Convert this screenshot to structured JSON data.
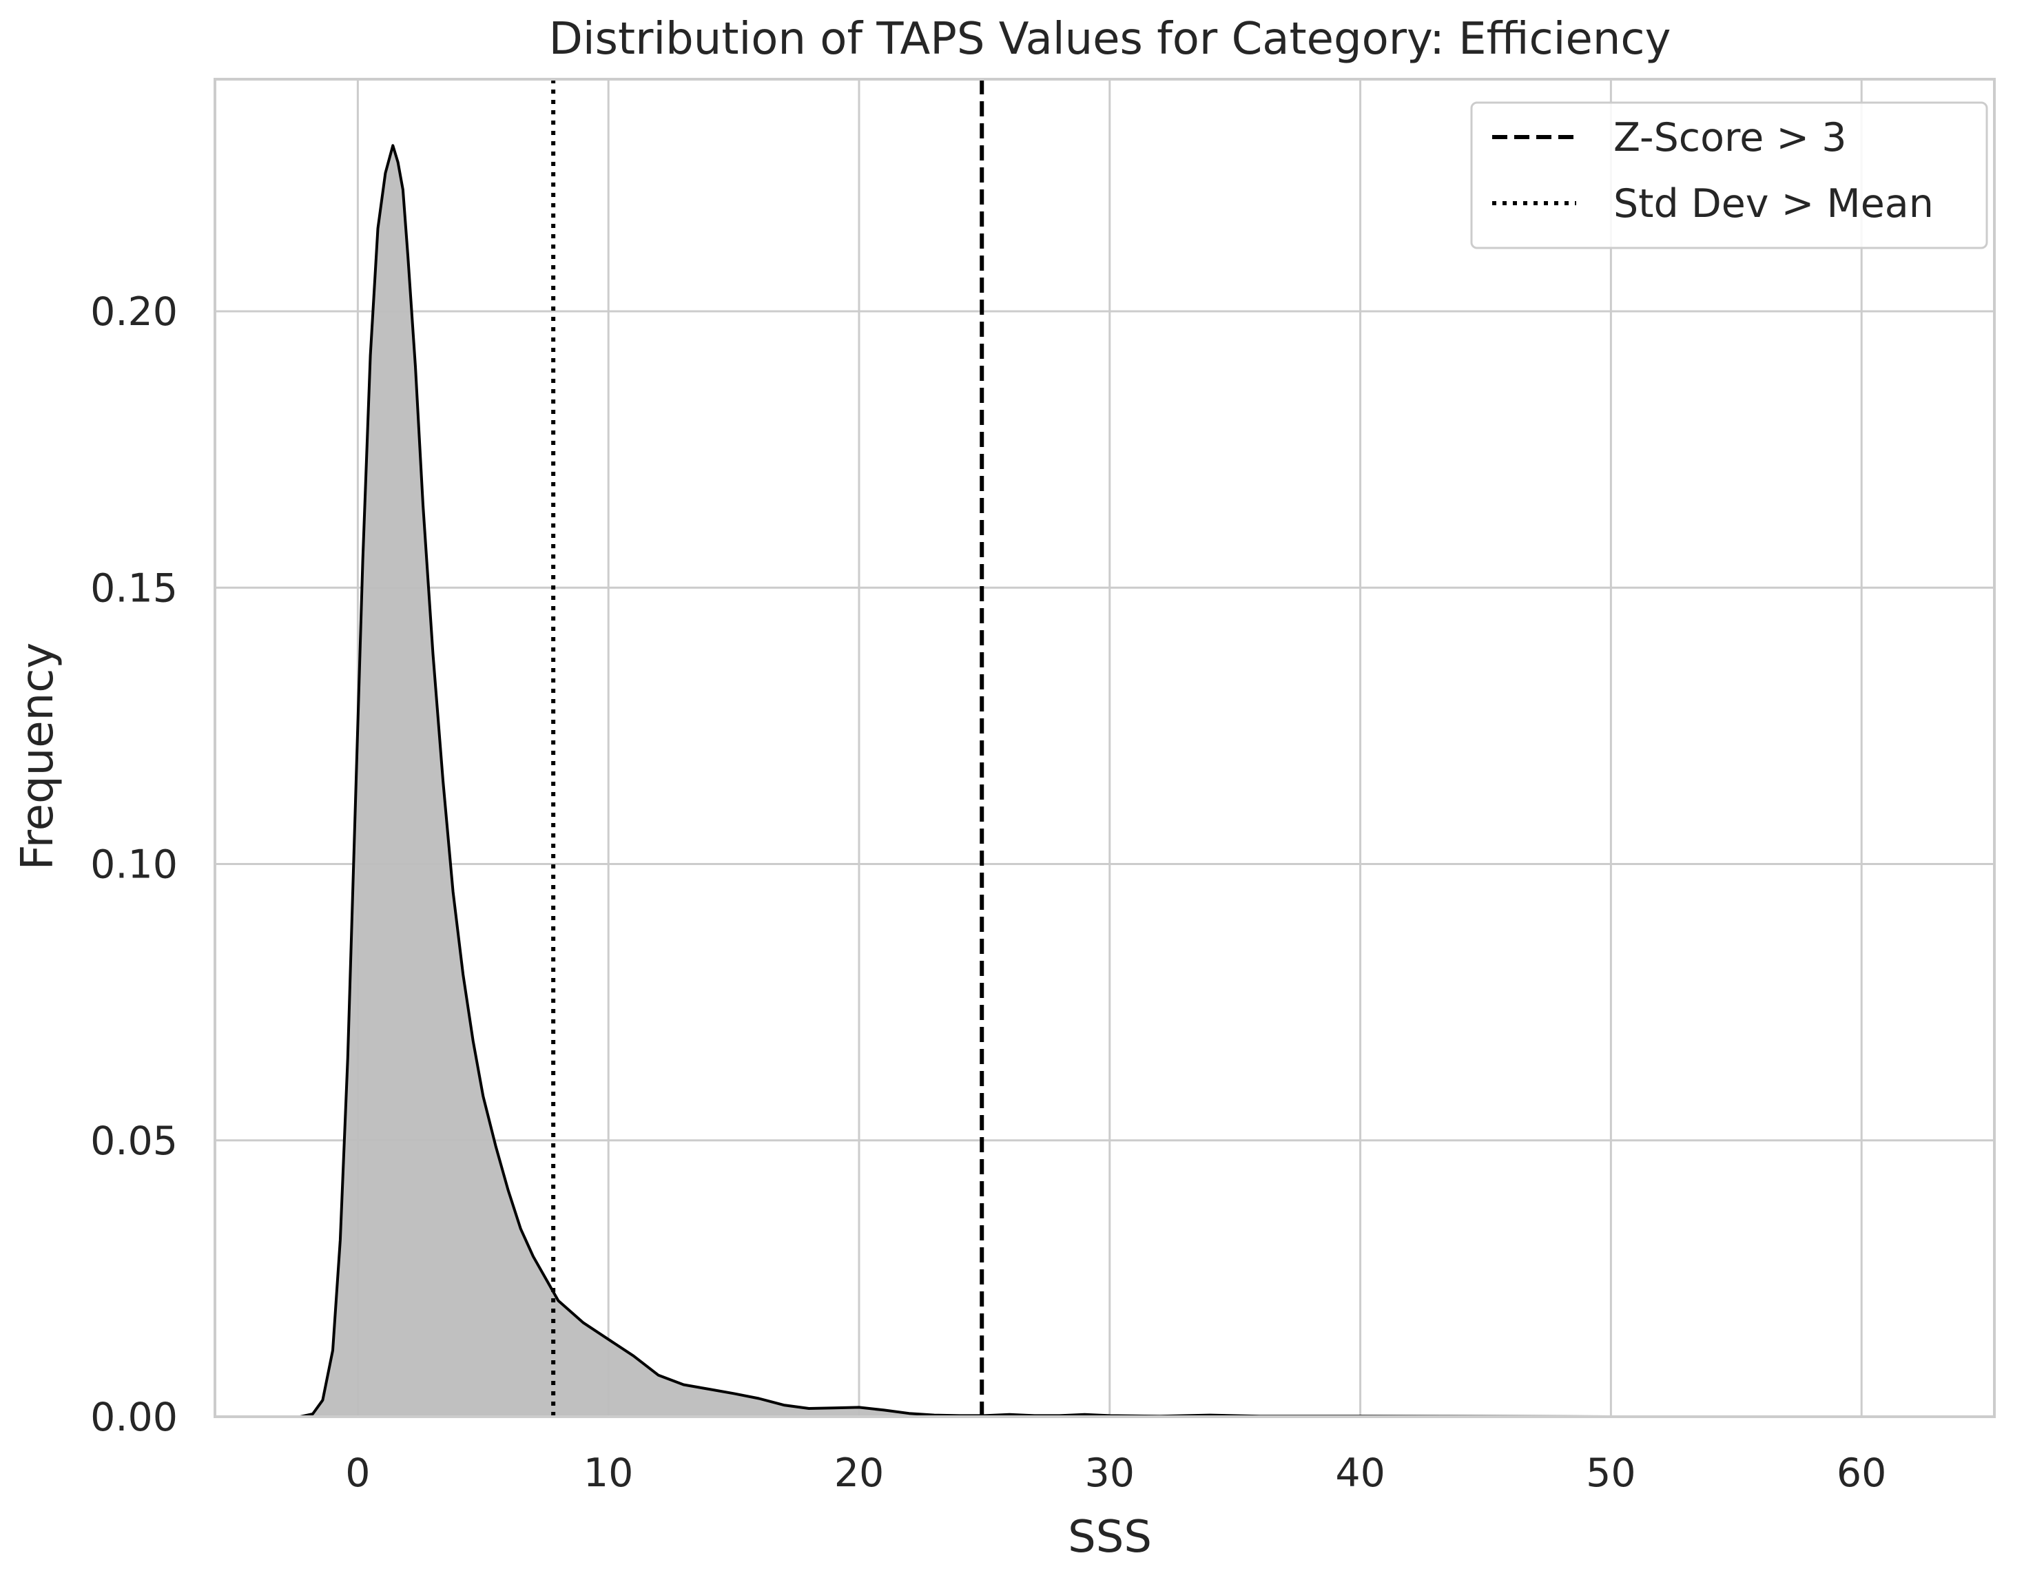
{
  "chart_data": {
    "type": "area",
    "title": "Distribution of TAPS Values for Category: Efficiency",
    "xlabel": "SSS",
    "ylabel": "Frequency",
    "xlim": [
      -5.7,
      65.3
    ],
    "ylim": [
      0,
      0.242
    ],
    "x_ticks": [
      0,
      10,
      20,
      30,
      40,
      50,
      60
    ],
    "x_tick_labels": [
      "0",
      "10",
      "20",
      "30",
      "40",
      "50",
      "60"
    ],
    "y_ticks": [
      0.0,
      0.05,
      0.1,
      0.15,
      0.2
    ],
    "y_tick_labels": [
      "0.00",
      "0.05",
      "0.10",
      "0.15",
      "0.20"
    ],
    "grid": true,
    "legend_position": "top-right",
    "series": [
      {
        "kind": "kde",
        "fill_color": "#bdbdbd",
        "line_color": "#000000",
        "x": [
          -2.3,
          -1.8,
          -1.4,
          -1.0,
          -0.7,
          -0.4,
          -0.1,
          0.2,
          0.5,
          0.8,
          1.1,
          1.4,
          1.6,
          1.8,
          2.0,
          2.3,
          2.6,
          3.0,
          3.4,
          3.8,
          4.2,
          4.6,
          5.0,
          5.5,
          6.0,
          6.5,
          7.0,
          7.5,
          8.0,
          9.0,
          10.0,
          11.0,
          12.0,
          13.0,
          14.0,
          15.0,
          16.0,
          17.0,
          18.0,
          19.0,
          20.0,
          21.0,
          22.0,
          23.0,
          24.0,
          25.0,
          26.0,
          27.0,
          28.0,
          29.0,
          30.0,
          32.0,
          34.0,
          36.0,
          40.0,
          50.0,
          60.0,
          62.5
        ],
        "y": [
          0.0,
          0.0005,
          0.003,
          0.012,
          0.032,
          0.065,
          0.11,
          0.155,
          0.192,
          0.215,
          0.225,
          0.23,
          0.227,
          0.222,
          0.21,
          0.19,
          0.165,
          0.138,
          0.115,
          0.095,
          0.08,
          0.068,
          0.058,
          0.049,
          0.041,
          0.034,
          0.029,
          0.025,
          0.021,
          0.017,
          0.014,
          0.011,
          0.0075,
          0.0058,
          0.005,
          0.0042,
          0.0033,
          0.0021,
          0.0015,
          0.0016,
          0.0017,
          0.0012,
          0.0006,
          0.0003,
          0.0002,
          0.0002,
          0.0004,
          0.0002,
          0.0002,
          0.0004,
          0.0002,
          0.0001,
          0.0003,
          0.0001,
          0.0001,
          0.0,
          0.0,
          0.0
        ]
      }
    ],
    "vlines": [
      {
        "name": "Std Dev > Mean",
        "x": 7.8,
        "style": "dotted",
        "color": "#000000"
      },
      {
        "name": "Z-Score > 3",
        "x": 24.9,
        "style": "dashed",
        "color": "#000000"
      }
    ],
    "legend": [
      {
        "label": "Z-Score > 3",
        "style": "dashed"
      },
      {
        "label": "Std Dev > Mean",
        "style": "dotted"
      }
    ]
  }
}
